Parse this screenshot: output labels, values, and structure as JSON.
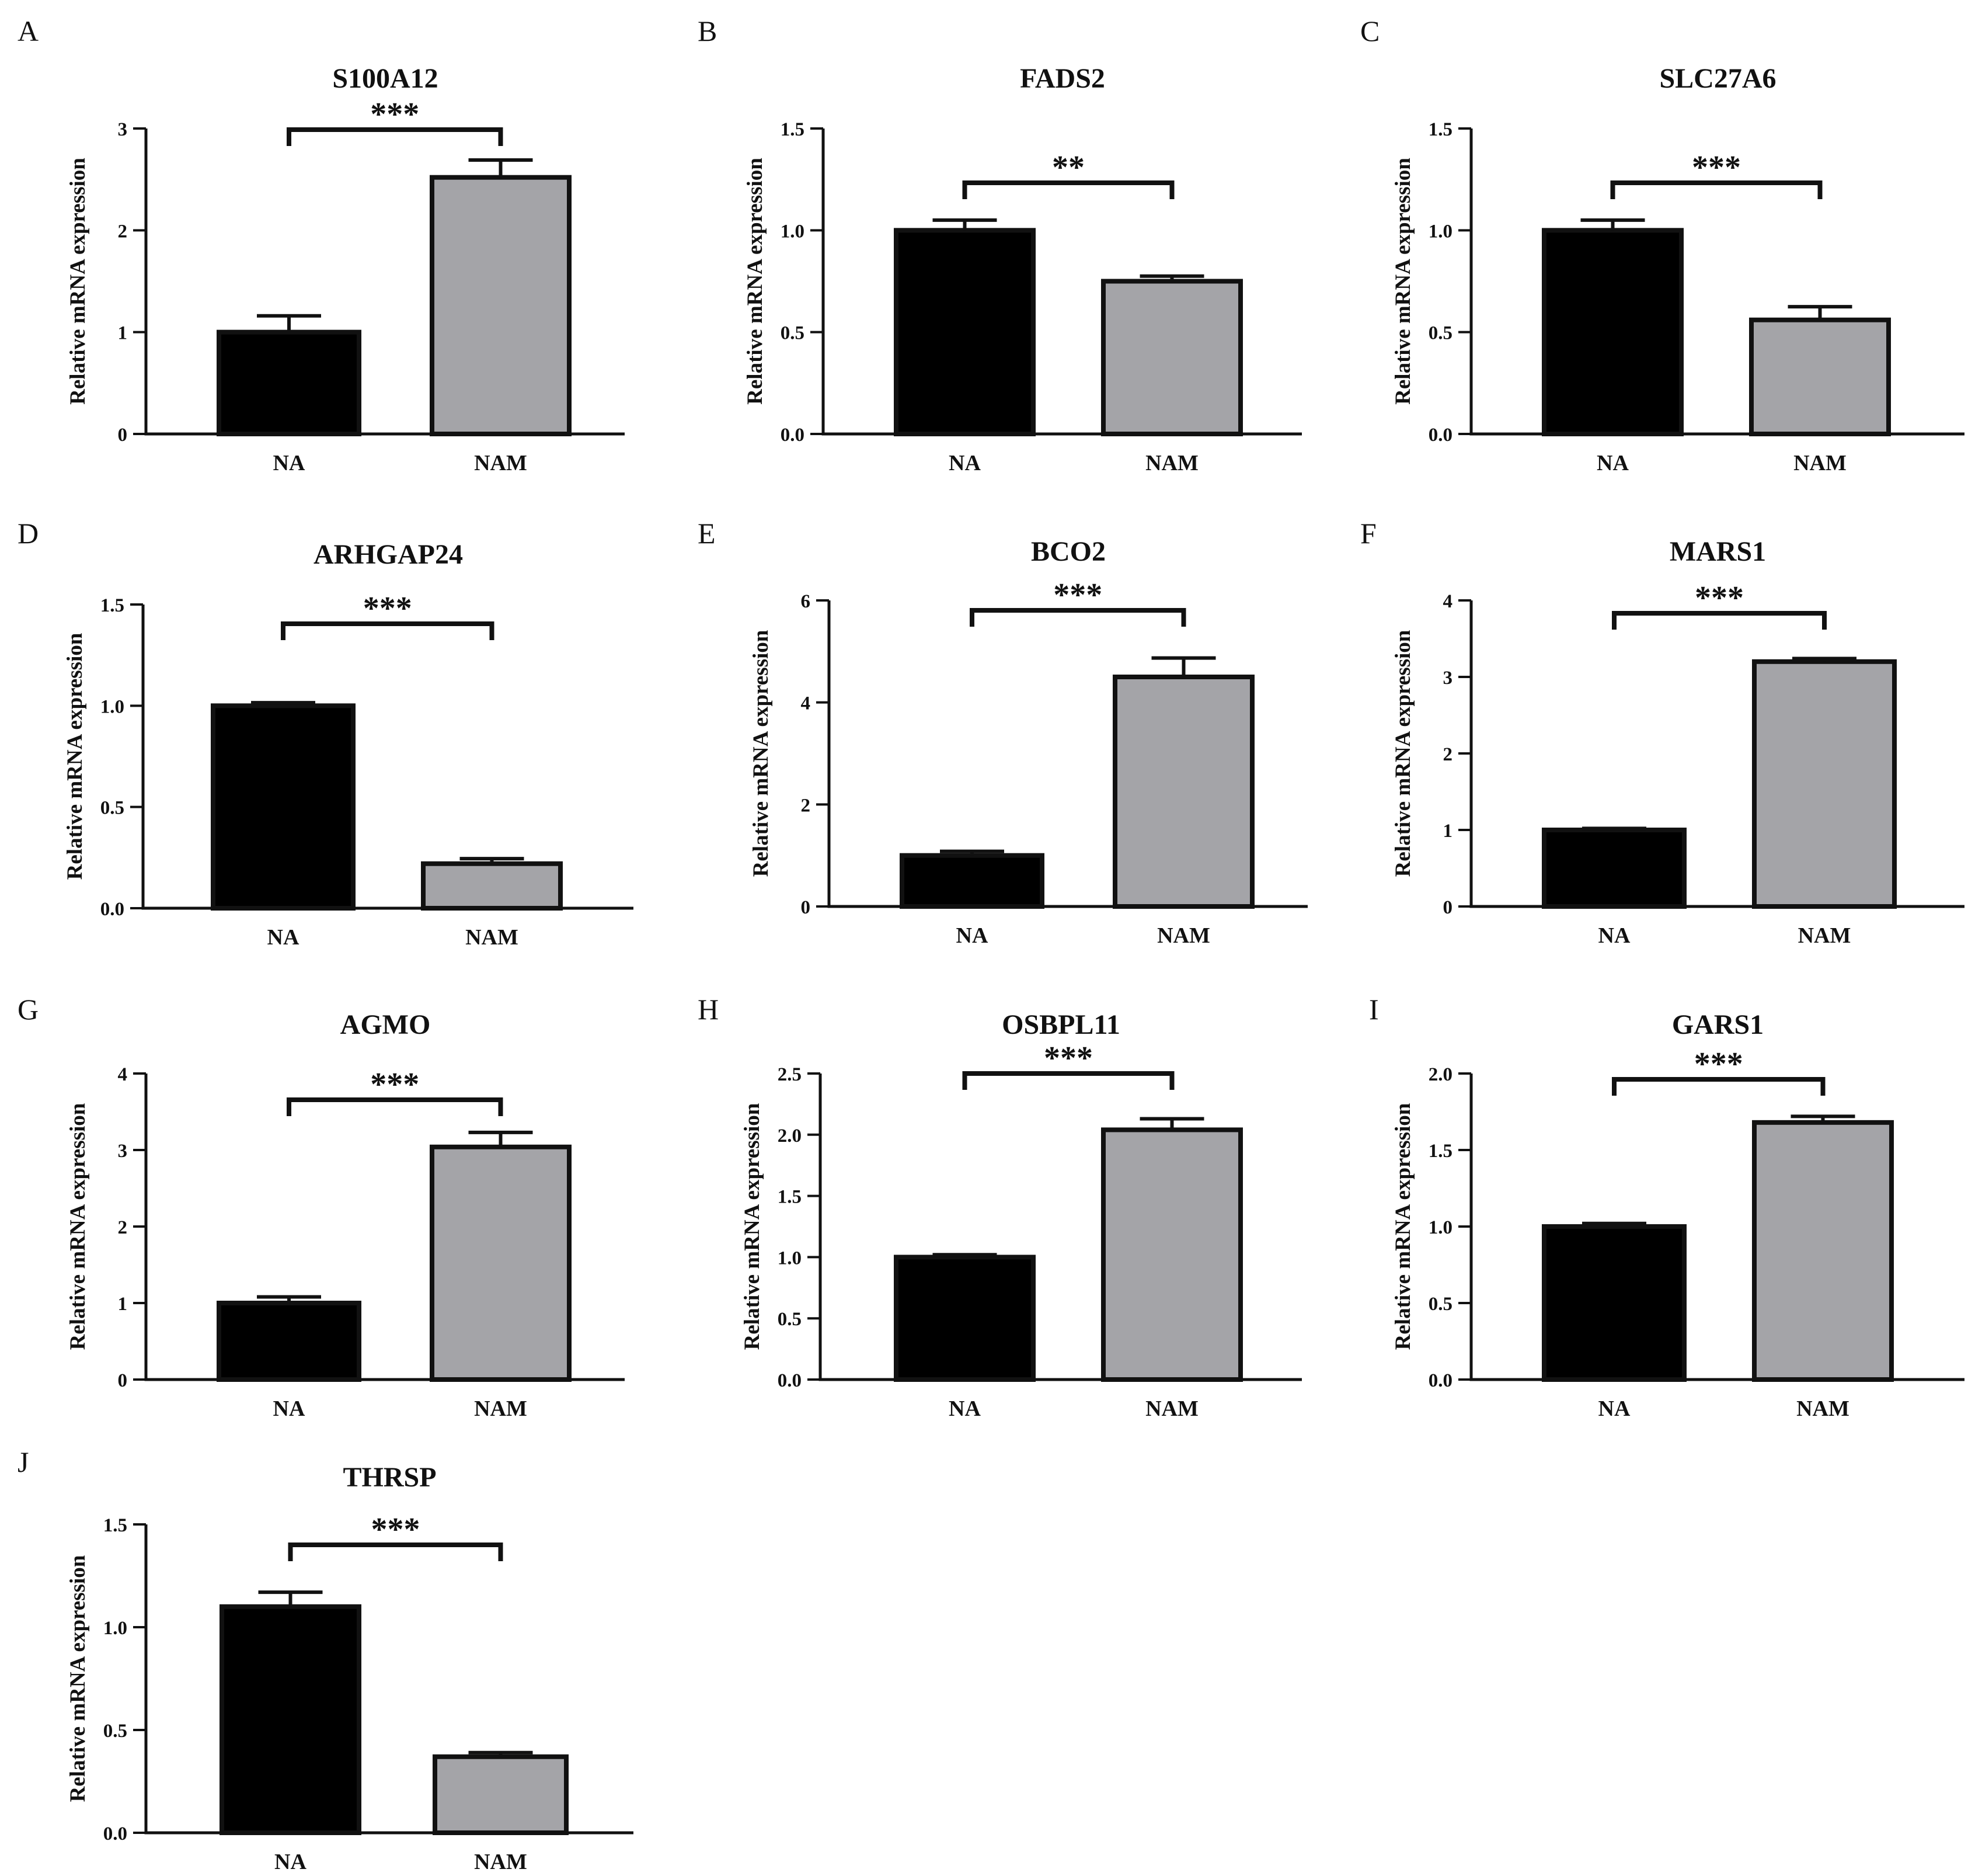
{
  "colors": {
    "NA": "#000000",
    "NAM": "#a4a4a8",
    "axis": "#111111"
  },
  "chart_data": [
    {
      "panel": "A",
      "type": "bar",
      "title": "S100A12",
      "ylabel": "Relative mRNA expression",
      "categories": [
        "NA",
        "NAM"
      ],
      "values": [
        1.0,
        2.52
      ],
      "errors": [
        0.16,
        0.17
      ],
      "ylim": [
        0,
        3
      ],
      "yticks": [
        "0",
        "1",
        "2",
        "3"
      ],
      "significance": "***"
    },
    {
      "panel": "B",
      "type": "bar",
      "title": "FADS2",
      "ylabel": "Relative mRNA expression",
      "categories": [
        "NA",
        "NAM"
      ],
      "values": [
        1.0,
        0.75
      ],
      "errors": [
        0.05,
        0.025
      ],
      "ylim": [
        0,
        1.5
      ],
      "yticks": [
        "0.0",
        "0.5",
        "1.0",
        "1.5"
      ],
      "significance": "**"
    },
    {
      "panel": "C",
      "type": "bar",
      "title": "SLC27A6",
      "ylabel": "Relative mRNA expression",
      "categories": [
        "NA",
        "NAM"
      ],
      "values": [
        1.0,
        0.56
      ],
      "errors": [
        0.05,
        0.065
      ],
      "ylim": [
        0,
        1.5
      ],
      "yticks": [
        "0.0",
        "0.5",
        "1.0",
        "1.5"
      ],
      "significance": "***"
    },
    {
      "panel": "D",
      "type": "bar",
      "title": "ARHGAP24",
      "ylabel": "Relative mRNA expression",
      "categories": [
        "NA",
        "NAM"
      ],
      "values": [
        1.0,
        0.22
      ],
      "errors": [
        0.015,
        0.025
      ],
      "ylim": [
        0,
        1.5
      ],
      "yticks": [
        "0.0",
        "0.5",
        "1.0",
        "1.5"
      ],
      "significance": "***"
    },
    {
      "panel": "E",
      "type": "bar",
      "title": "BCO2",
      "ylabel": "Relative mRNA expression",
      "categories": [
        "NA",
        "NAM"
      ],
      "values": [
        1.0,
        4.5
      ],
      "errors": [
        0.08,
        0.37
      ],
      "ylim": [
        0,
        6
      ],
      "yticks": [
        "0",
        "2",
        "4",
        "6"
      ],
      "significance": "***"
    },
    {
      "panel": "F",
      "type": "bar",
      "title": "MARS1",
      "ylabel": "Relative mRNA expression",
      "categories": [
        "NA",
        "NAM"
      ],
      "values": [
        1.0,
        3.2
      ],
      "errors": [
        0.02,
        0.04
      ],
      "ylim": [
        0,
        4
      ],
      "yticks": [
        "0",
        "1",
        "2",
        "3",
        "4"
      ],
      "significance": "***"
    },
    {
      "panel": "G",
      "type": "bar",
      "title": "AGMO",
      "ylabel": "Relative mRNA expression",
      "categories": [
        "NA",
        "NAM"
      ],
      "values": [
        1.0,
        3.04
      ],
      "errors": [
        0.08,
        0.19
      ],
      "ylim": [
        0,
        4
      ],
      "yticks": [
        "0",
        "1",
        "2",
        "3",
        "4"
      ],
      "significance": "***"
    },
    {
      "panel": "H",
      "type": "bar",
      "title": "OSBPL11",
      "ylabel": "Relative mRNA expression",
      "categories": [
        "NA",
        "NAM"
      ],
      "values": [
        1.0,
        2.04
      ],
      "errors": [
        0.02,
        0.09
      ],
      "ylim": [
        0,
        2.5
      ],
      "yticks": [
        "0.0",
        "0.5",
        "1.0",
        "1.5",
        "2.0",
        "2.5"
      ],
      "significance": "***"
    },
    {
      "panel": "I",
      "type": "bar",
      "title": "GARS1",
      "ylabel": "Relative mRNA expression",
      "categories": [
        "NA",
        "NAM"
      ],
      "values": [
        1.0,
        1.68
      ],
      "errors": [
        0.02,
        0.04
      ],
      "ylim": [
        0,
        2.0
      ],
      "yticks": [
        "0.0",
        "0.5",
        "1.0",
        "1.5",
        "2.0"
      ],
      "significance": "***"
    },
    {
      "panel": "J",
      "type": "bar",
      "title": "THRSP",
      "ylabel": "Relative mRNA expression",
      "categories": [
        "NA",
        "NAM"
      ],
      "values": [
        1.1,
        0.37
      ],
      "errors": [
        0.07,
        0.02
      ],
      "ylim": [
        0,
        1.5
      ],
      "yticks": [
        "0.0",
        "0.5",
        "1.0",
        "1.5"
      ],
      "significance": "***"
    }
  ]
}
